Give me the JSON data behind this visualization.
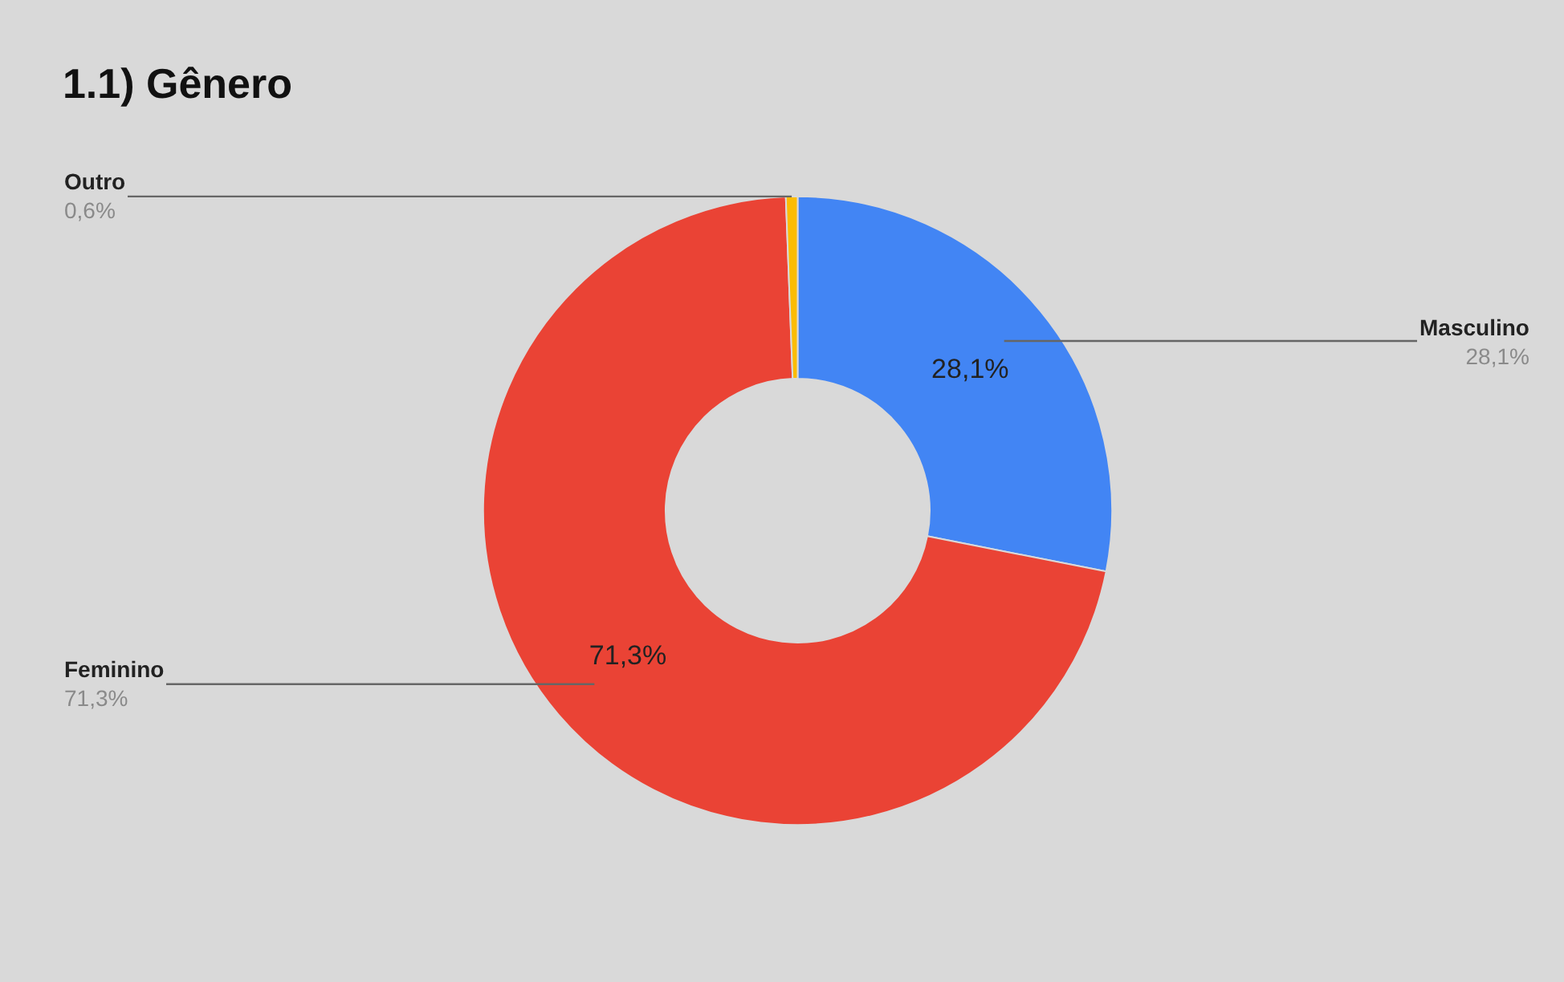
{
  "chart_data": {
    "type": "donut",
    "title": "1.1) Gênero",
    "categories": [
      "Masculino",
      "Feminino",
      "Outro"
    ],
    "values": [
      28.1,
      71.3,
      0.6
    ],
    "colors": [
      "#4285f4",
      "#ea4335",
      "#fbbc04"
    ],
    "value_labels": [
      "28,1%",
      "71,3%",
      "0,6%"
    ],
    "legend": false
  }
}
